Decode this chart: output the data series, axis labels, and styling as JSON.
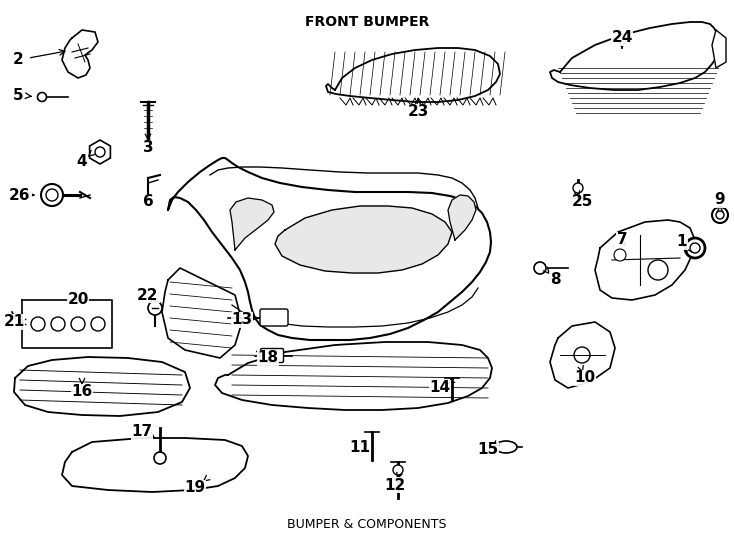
{
  "title": "FRONT BUMPER",
  "subtitle": "BUMPER & COMPONENTS",
  "bg_color": "#ffffff",
  "line_color": "#000000",
  "fig_width": 7.34,
  "fig_height": 5.4,
  "dpi": 100
}
